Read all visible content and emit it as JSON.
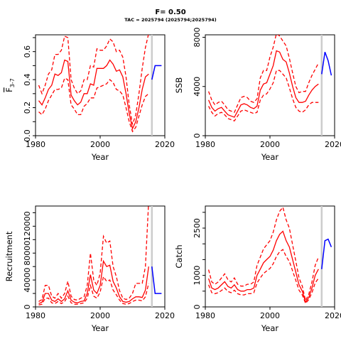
{
  "header": {
    "title": "F= 0.50",
    "subtitle": "TAC = 2025794 (2025794;2025794)"
  },
  "colors": {
    "history": "#ff0000",
    "projection": "#0000ff",
    "divider": "#cccccc"
  },
  "chart_data": [
    {
      "type": "line",
      "xlabel": "Year",
      "ylabel": "F",
      "ylabel_sub": "3-7",
      "xlim": [
        1980,
        2020
      ],
      "ylim": [
        0,
        0.72
      ],
      "xticks": [
        1980,
        2000,
        2020
      ],
      "yticks": [
        0,
        0.1,
        0.2,
        0.3,
        0.4,
        0.5,
        0.6,
        0.7
      ],
      "ytick_labels": [
        "0.0",
        "",
        "0.2",
        "",
        "0.4",
        "",
        "0.6",
        ""
      ],
      "divider_year": 2016,
      "years": [
        1981,
        1982,
        1983,
        1984,
        1985,
        1986,
        1987,
        1988,
        1989,
        1990,
        1991,
        1992,
        1993,
        1994,
        1995,
        1996,
        1997,
        1998,
        1999,
        2000,
        2001,
        2002,
        2003,
        2004,
        2005,
        2006,
        2007,
        2008,
        2009,
        2010,
        2011,
        2012,
        2013,
        2014,
        2015
      ],
      "estimate": [
        0.25,
        0.22,
        0.27,
        0.33,
        0.36,
        0.44,
        0.43,
        0.45,
        0.54,
        0.53,
        0.29,
        0.25,
        0.22,
        0.24,
        0.3,
        0.3,
        0.37,
        0.36,
        0.48,
        0.48,
        0.48,
        0.5,
        0.54,
        0.51,
        0.46,
        0.47,
        0.42,
        0.3,
        0.16,
        0.05,
        0.1,
        0.2,
        0.33,
        0.42,
        0.44
      ],
      "lower": [
        0.17,
        0.15,
        0.19,
        0.25,
        0.29,
        0.33,
        0.33,
        0.34,
        0.41,
        0.4,
        0.22,
        0.19,
        0.15,
        0.15,
        0.21,
        0.23,
        0.27,
        0.27,
        0.34,
        0.35,
        0.36,
        0.37,
        0.4,
        0.38,
        0.33,
        0.32,
        0.29,
        0.2,
        0.1,
        0.03,
        0.06,
        0.14,
        0.22,
        0.28,
        0.3
      ],
      "upper": [
        0.36,
        0.3,
        0.36,
        0.44,
        0.47,
        0.58,
        0.58,
        0.61,
        0.71,
        0.7,
        0.4,
        0.34,
        0.3,
        0.32,
        0.4,
        0.4,
        0.5,
        0.49,
        0.62,
        0.61,
        0.61,
        0.64,
        0.69,
        0.67,
        0.6,
        0.61,
        0.56,
        0.42,
        0.22,
        0.08,
        0.15,
        0.3,
        0.48,
        0.63,
        0.73
      ],
      "projection": {
        "years": [
          2016,
          2017,
          2018,
          2019
        ],
        "values": [
          0.4,
          0.5,
          0.5,
          0.5
        ]
      }
    },
    {
      "type": "line",
      "xlabel": "Year",
      "ylabel": "SSB",
      "xlim": [
        1980,
        2020
      ],
      "ylim": [
        0,
        8200
      ],
      "xticks": [
        1980,
        2000,
        2020
      ],
      "yticks": [
        0,
        4000,
        8000
      ],
      "ytick_labels": [
        "0",
        "4000",
        "8000"
      ],
      "divider_year": 2016,
      "years": [
        1981,
        1982,
        1983,
        1984,
        1985,
        1986,
        1987,
        1988,
        1989,
        1990,
        1991,
        1992,
        1993,
        1994,
        1995,
        1996,
        1997,
        1998,
        1999,
        2000,
        2001,
        2002,
        2003,
        2004,
        2005,
        2006,
        2007,
        2008,
        2009,
        2010,
        2011,
        2012,
        2013,
        2014,
        2015
      ],
      "estimate": [
        2900,
        2300,
        2000,
        2200,
        2300,
        2000,
        1700,
        1600,
        1500,
        2000,
        2500,
        2600,
        2500,
        2300,
        2200,
        2400,
        3700,
        4200,
        4300,
        5000,
        5700,
        6900,
        6800,
        6200,
        6000,
        5100,
        4000,
        3100,
        2700,
        2700,
        2800,
        3300,
        3700,
        4000,
        4200
      ],
      "lower": [
        2400,
        1900,
        1600,
        1800,
        1900,
        1700,
        1400,
        1300,
        1200,
        1600,
        2000,
        2100,
        2000,
        1900,
        1800,
        1900,
        2900,
        3300,
        3400,
        3800,
        4300,
        5300,
        5300,
        5000,
        4700,
        3900,
        3000,
        2300,
        2000,
        1900,
        2100,
        2500,
        2700,
        2700,
        2700
      ],
      "upper": [
        3600,
        2900,
        2500,
        2700,
        2800,
        2500,
        2100,
        2000,
        1900,
        2500,
        3100,
        3200,
        3100,
        2800,
        2700,
        3000,
        4700,
        5300,
        5300,
        6400,
        7200,
        8300,
        8100,
        7700,
        7300,
        6300,
        5100,
        4000,
        3500,
        3600,
        3600,
        4300,
        4900,
        5400,
        5900
      ],
      "projection": {
        "years": [
          2016,
          2017,
          2018,
          2019
        ],
        "values": [
          5000,
          6800,
          6100,
          4900
        ]
      }
    },
    {
      "type": "line",
      "xlabel": "Year",
      "ylabel": "Recruitment",
      "xlim": [
        1980,
        2020
      ],
      "ylim": [
        0,
        150000
      ],
      "xticks": [
        1980,
        2000,
        2020
      ],
      "yticks": [
        0,
        20000,
        40000,
        60000,
        80000,
        100000,
        120000,
        140000
      ],
      "ytick_labels": [
        "0",
        "",
        "40000",
        "",
        "80000",
        "",
        "120000",
        ""
      ],
      "divider_year": 2016,
      "years": [
        1981,
        1982,
        1983,
        1984,
        1985,
        1986,
        1987,
        1988,
        1989,
        1990,
        1991,
        1992,
        1993,
        1994,
        1995,
        1996,
        1997,
        1998,
        1999,
        2000,
        2001,
        2002,
        2003,
        2004,
        2005,
        2006,
        2007,
        2008,
        2009,
        2010,
        2011,
        2012,
        2013,
        2014,
        2015
      ],
      "estimate": [
        5000,
        7000,
        20000,
        20000,
        10000,
        8000,
        12000,
        8000,
        12000,
        24000,
        10000,
        7000,
        6000,
        8000,
        9000,
        20000,
        48000,
        25000,
        20000,
        32000,
        68000,
        60000,
        62000,
        38000,
        28000,
        15000,
        8000,
        7000,
        8000,
        12000,
        15000,
        15000,
        14000,
        25000,
        60000
      ],
      "lower": [
        3000,
        4000,
        13000,
        13000,
        6000,
        5000,
        8000,
        5000,
        8000,
        16000,
        6000,
        4000,
        4000,
        5000,
        6000,
        13000,
        32000,
        16000,
        13000,
        22000,
        45000,
        38000,
        40000,
        25000,
        18000,
        10000,
        5000,
        4000,
        5000,
        8000,
        10000,
        10000,
        9000,
        15000,
        35000
      ],
      "upper": [
        8000,
        11000,
        32000,
        32000,
        16000,
        13000,
        20000,
        13000,
        20000,
        38000,
        16000,
        11000,
        10000,
        13000,
        15000,
        32000,
        80000,
        40000,
        32000,
        50000,
        105000,
        95000,
        98000,
        60000,
        45000,
        24000,
        13000,
        11000,
        13000,
        20000,
        35000,
        35000,
        35000,
        60000,
        158000
      ],
      "projection": {
        "years": [
          2016,
          2017,
          2018,
          2019
        ],
        "values": [
          60000,
          20000,
          20000,
          20000
        ]
      }
    },
    {
      "type": "line",
      "xlabel": "Year",
      "ylabel": "Catch",
      "xlim": [
        1980,
        2020
      ],
      "ylim": [
        0,
        3200
      ],
      "xticks": [
        1980,
        2000,
        2020
      ],
      "yticks": [
        0,
        500,
        1000,
        1500,
        2000,
        2500,
        3000
      ],
      "ytick_labels": [
        "0",
        "",
        "1000",
        "",
        "",
        "2500",
        ""
      ],
      "divider_year": 2016,
      "years": [
        1981,
        1982,
        1983,
        1984,
        1985,
        1986,
        1987,
        1988,
        1989,
        1990,
        1991,
        1992,
        1993,
        1994,
        1995,
        1996,
        1997,
        1998,
        1999,
        2000,
        2001,
        2002,
        2003,
        2004,
        2005,
        2006,
        2007,
        2008,
        2009,
        2010,
        2011,
        2012,
        2013,
        2014,
        2015
      ],
      "estimate": [
        900,
        600,
        550,
        600,
        700,
        800,
        650,
        600,
        700,
        550,
        500,
        500,
        550,
        550,
        600,
        1000,
        1200,
        1400,
        1500,
        1600,
        1800,
        2100,
        2300,
        2400,
        2100,
        1900,
        1500,
        1100,
        700,
        500,
        150,
        300,
        600,
        1000,
        1200
      ],
      "lower": [
        700,
        450,
        420,
        450,
        520,
        600,
        490,
        450,
        530,
        420,
        380,
        380,
        420,
        420,
        450,
        760,
        920,
        1060,
        1140,
        1220,
        1370,
        1600,
        1750,
        1820,
        1600,
        1440,
        1140,
        840,
        530,
        380,
        110,
        230,
        450,
        760,
        910
      ],
      "upper": [
        1180,
        790,
        720,
        790,
        920,
        1050,
        860,
        790,
        920,
        720,
        660,
        660,
        720,
        720,
        790,
        1320,
        1580,
        1840,
        1970,
        2100,
        2370,
        2760,
        3030,
        3160,
        2760,
        2500,
        1970,
        1450,
        920,
        660,
        200,
        400,
        790,
        1320,
        1580
      ],
      "projection": {
        "years": [
          2016,
          2017,
          2018,
          2019
        ],
        "values": [
          1200,
          2100,
          2150,
          1900
        ]
      }
    }
  ]
}
